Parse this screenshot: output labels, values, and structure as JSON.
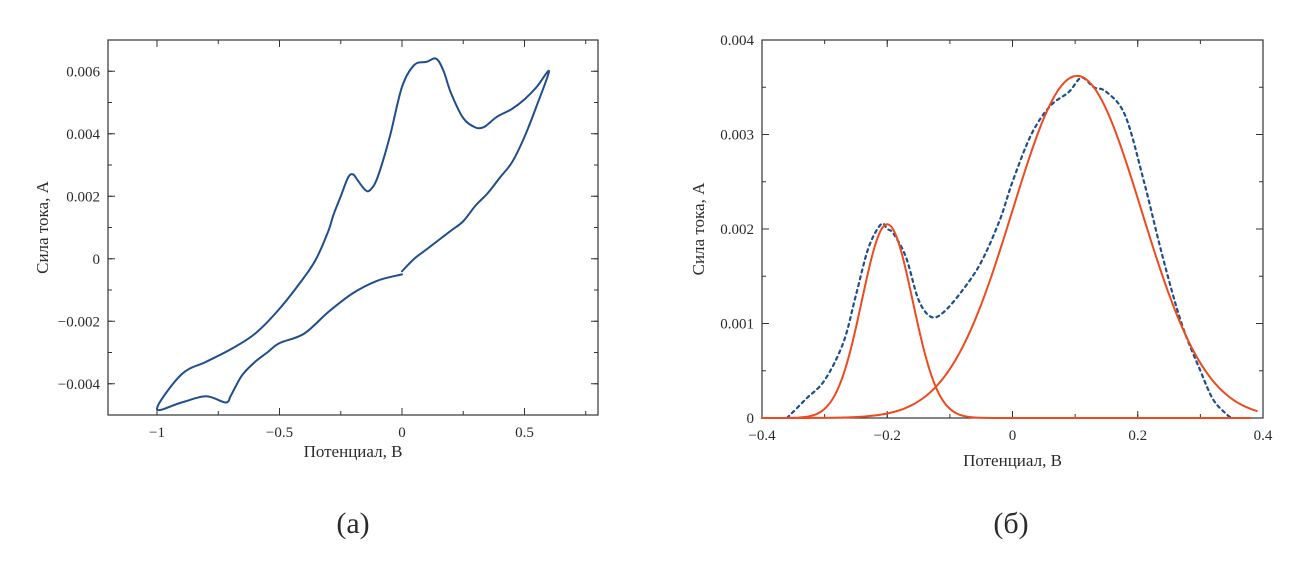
{
  "colors": {
    "cv_line": "#1f4e8c",
    "dotted_line": "#1f4e8c",
    "fit_line": "#ee4a1e",
    "axis": "#333333"
  },
  "chart_data": [
    {
      "id": "a",
      "type": "line",
      "caption": "(а)",
      "xlabel": "Потенциал, В",
      "ylabel": "Сила тока, А",
      "xlim": [
        -1.2,
        0.8
      ],
      "ylim": [
        -0.005,
        0.007
      ],
      "xticks": [
        -1,
        -0.5,
        0,
        0.5
      ],
      "xtick_labels": [
        "−1",
        "−0.5",
        "0",
        "0.5"
      ],
      "yticks": [
        -0.004,
        -0.002,
        0,
        0.002,
        0.004,
        0.006
      ],
      "ytick_labels": [
        "−0.004",
        "−0.002",
        "0",
        "0.002",
        "0.004",
        "0.006"
      ],
      "series": [
        {
          "name": "cyclic voltammogram",
          "style": "solid",
          "x": [
            0.0,
            -0.1,
            -0.2,
            -0.3,
            -0.4,
            -0.5,
            -0.55,
            -0.6,
            -0.65,
            -0.68,
            -0.7,
            -0.72,
            -0.8,
            -0.9,
            -1.0,
            -0.9,
            -0.8,
            -0.7,
            -0.6,
            -0.5,
            -0.4,
            -0.35,
            -0.3,
            -0.28,
            -0.25,
            -0.22,
            -0.2,
            -0.18,
            -0.15,
            -0.13,
            -0.1,
            -0.05,
            0.0,
            0.05,
            0.1,
            0.14,
            0.17,
            0.2,
            0.25,
            0.3,
            0.33,
            0.35,
            0.38,
            0.4,
            0.45,
            0.5,
            0.55,
            0.6,
            0.55,
            0.5,
            0.45,
            0.4,
            0.35,
            0.3,
            0.25,
            0.2,
            0.15,
            0.1,
            0.05,
            0.0
          ],
          "y": [
            -0.0005,
            -0.0007,
            -0.0011,
            -0.0017,
            -0.0024,
            -0.0027,
            -0.003,
            -0.0033,
            -0.0037,
            -0.0041,
            -0.0044,
            -0.0046,
            -0.0044,
            -0.0046,
            -0.0048,
            -0.0037,
            -0.0033,
            -0.0029,
            -0.0024,
            -0.0016,
            -0.0006,
            0.0,
            0.0009,
            0.0014,
            0.002,
            0.0026,
            0.0027,
            0.0025,
            0.0022,
            0.0022,
            0.0026,
            0.0039,
            0.0055,
            0.0062,
            0.0063,
            0.0064,
            0.006,
            0.0053,
            0.0045,
            0.0042,
            0.0042,
            0.0043,
            0.0045,
            0.0046,
            0.0048,
            0.0051,
            0.0055,
            0.006,
            0.0049,
            0.0039,
            0.0031,
            0.0026,
            0.0021,
            0.0017,
            0.0012,
            0.0009,
            0.0006,
            0.0003,
            0.0,
            -0.0004
          ]
        }
      ]
    },
    {
      "id": "b",
      "type": "line",
      "caption": "(б)",
      "xlabel": "Потенциал, В",
      "ylabel": "Сила тока, А",
      "xlim": [
        -0.4,
        0.4
      ],
      "ylim": [
        0,
        0.004
      ],
      "xticks": [
        -0.4,
        -0.2,
        0,
        0.2,
        0.4
      ],
      "xtick_labels": [
        "−0.4",
        "−0.2",
        "0",
        "0.2",
        "0.4"
      ],
      "yticks": [
        0,
        0.001,
        0.002,
        0.003,
        0.004
      ],
      "ytick_labels": [
        "0",
        "0.001",
        "0.002",
        "0.003",
        "0.004"
      ],
      "series": [
        {
          "name": "measured peak (dotted)",
          "style": "dotted",
          "x": [
            -0.36,
            -0.33,
            -0.3,
            -0.27,
            -0.25,
            -0.23,
            -0.21,
            -0.2,
            -0.19,
            -0.17,
            -0.15,
            -0.13,
            -0.11,
            -0.08,
            -0.05,
            -0.02,
            0.0,
            0.03,
            0.06,
            0.09,
            0.11,
            0.13,
            0.15,
            0.18,
            0.21,
            0.24,
            0.27,
            0.3,
            0.32,
            0.34,
            0.35
          ],
          "y": [
            0.0,
            0.0002,
            0.0004,
            0.0008,
            0.0013,
            0.0018,
            0.00205,
            0.002,
            0.00195,
            0.0017,
            0.00125,
            0.00107,
            0.00112,
            0.00135,
            0.00165,
            0.0021,
            0.0025,
            0.003,
            0.0033,
            0.00345,
            0.0036,
            0.0035,
            0.00345,
            0.0032,
            0.0025,
            0.0017,
            0.001,
            0.0005,
            0.0002,
            5e-05,
            0.0
          ]
        },
        {
          "name": "gaussian fit 1",
          "style": "solid",
          "peak_center": -0.2,
          "peak_height": 0.00205,
          "peak_sigma": 0.0405,
          "x_range": [
            -0.4,
            0.38
          ]
        },
        {
          "name": "gaussian fit 2",
          "style": "solid",
          "peak_center": 0.103,
          "peak_height": 0.00362,
          "peak_sigma": 0.103,
          "x_range": [
            -0.4,
            0.39
          ]
        }
      ]
    }
  ]
}
